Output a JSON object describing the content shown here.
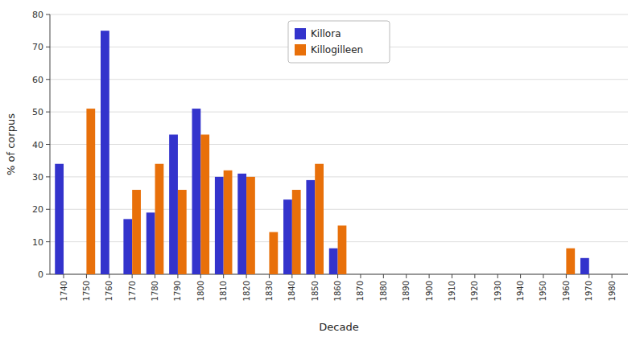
{
  "chart_data": {
    "type": "bar",
    "x": [
      1740,
      1750,
      1760,
      1770,
      1780,
      1790,
      1800,
      1810,
      1820,
      1830,
      1840,
      1850,
      1860,
      1870,
      1880,
      1890,
      1900,
      1910,
      1920,
      1930,
      1940,
      1950,
      1960,
      1970,
      1980
    ],
    "series": [
      {
        "name": "Killora",
        "color": "#3333cc",
        "values": [
          34,
          0,
          75,
          17,
          19,
          43,
          51,
          30,
          31,
          0,
          23,
          29,
          8,
          0,
          0,
          0,
          0,
          0,
          0,
          0,
          0,
          0,
          0,
          5,
          0
        ]
      },
      {
        "name": "Killogilleen",
        "color": "#e8700a",
        "values": [
          0,
          51,
          0,
          26,
          34,
          26,
          43,
          32,
          30,
          13,
          26,
          34,
          15,
          0,
          0,
          0,
          0,
          0,
          0,
          0,
          0,
          0,
          8,
          0,
          0
        ]
      }
    ],
    "x_label": "Decade",
    "y_label": "% of corpus",
    "xlim": [
      1734,
      1987
    ],
    "xticks": [
      1740,
      1750,
      1760,
      1770,
      1780,
      1790,
      1800,
      1810,
      1820,
      1830,
      1840,
      1850,
      1860,
      1870,
      1880,
      1890,
      1900,
      1910,
      1920,
      1930,
      1940,
      1950,
      1960,
      1970,
      1980
    ],
    "ylim": [
      0,
      80
    ],
    "yticks": [
      0,
      10,
      20,
      30,
      40,
      50,
      60,
      70,
      80
    ],
    "grid": true,
    "legend": "upper center"
  }
}
